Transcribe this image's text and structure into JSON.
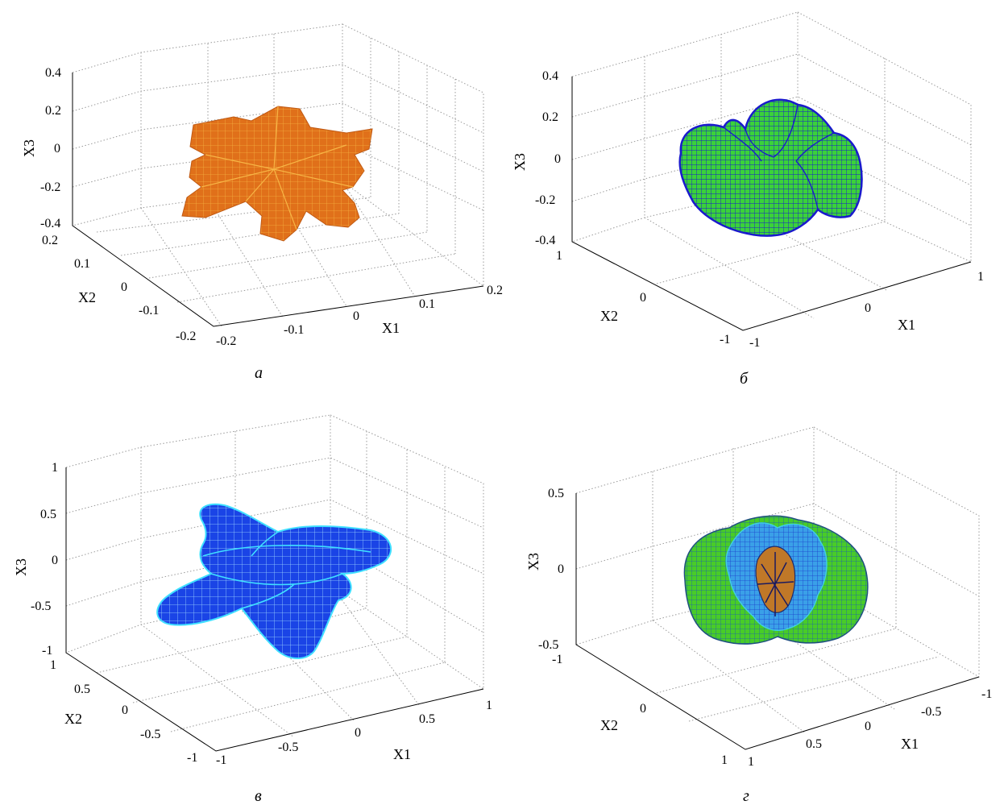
{
  "chart_data": [
    {
      "type": "surface3d",
      "caption": "а",
      "xlabel": "X1",
      "ylabel": "X2",
      "zlabel": "X3",
      "x_ticks": [
        "-0.2",
        "-0.1",
        "0",
        "0.1",
        "0.2"
      ],
      "y_ticks": [
        "-0.2",
        "-0.1",
        "0",
        "0.1",
        "0.2"
      ],
      "z_ticks": [
        "-0.4",
        "-0.2",
        "0",
        "0.2",
        "0.4"
      ],
      "xlim": [
        -0.2,
        0.2
      ],
      "ylim": [
        -0.2,
        0.2
      ],
      "zlim": [
        -0.4,
        0.4
      ],
      "grid": true,
      "surface_colors": [
        "#e0701a",
        "#f0a020",
        "#b85010"
      ]
    },
    {
      "type": "surface3d",
      "caption": "б",
      "xlabel": "X1",
      "ylabel": "X2",
      "zlabel": "X3",
      "x_ticks": [
        "-1",
        "0",
        "1"
      ],
      "y_ticks": [
        "-1",
        "0",
        "1"
      ],
      "z_ticks": [
        "-0.4",
        "-0.2",
        "0",
        "0.2",
        "0.4"
      ],
      "xlim": [
        -1,
        1
      ],
      "ylim": [
        -1,
        1
      ],
      "zlim": [
        -0.4,
        0.4
      ],
      "grid": true,
      "surface_colors": [
        "#33cc33",
        "#1a1acc",
        "#66dd44"
      ]
    },
    {
      "type": "surface3d",
      "caption": "в",
      "xlabel": "X1",
      "ylabel": "X2",
      "zlabel": "X3",
      "x_ticks": [
        "-1",
        "-0.5",
        "0",
        "0.5",
        "1"
      ],
      "y_ticks": [
        "-1",
        "-0.5",
        "0",
        "0.5",
        "1"
      ],
      "z_ticks": [
        "-1",
        "-0.5",
        "0",
        "0.5",
        "1"
      ],
      "xlim": [
        -1,
        1
      ],
      "ylim": [
        -1,
        1
      ],
      "zlim": [
        -1,
        1
      ],
      "grid": true,
      "surface_colors": [
        "#1a40e0",
        "#40e0ff",
        "#2255ee"
      ]
    },
    {
      "type": "surface3d",
      "caption": "г",
      "xlabel": "X1",
      "ylabel": "X2",
      "zlabel": "X3",
      "x_ticks": [
        "-1",
        "-0.5",
        "0",
        "0.5",
        "1"
      ],
      "y_ticks": [
        "-1",
        "0",
        "1"
      ],
      "z_ticks": [
        "-0.5",
        "0",
        "0.5"
      ],
      "xlim": [
        1,
        -1
      ],
      "ylim": [
        1,
        -1
      ],
      "zlim": [
        -0.5,
        0.5
      ],
      "grid": true,
      "surface_colors": [
        "#44cc22",
        "#2266ee",
        "#40d0e0",
        "#d08020"
      ]
    }
  ]
}
